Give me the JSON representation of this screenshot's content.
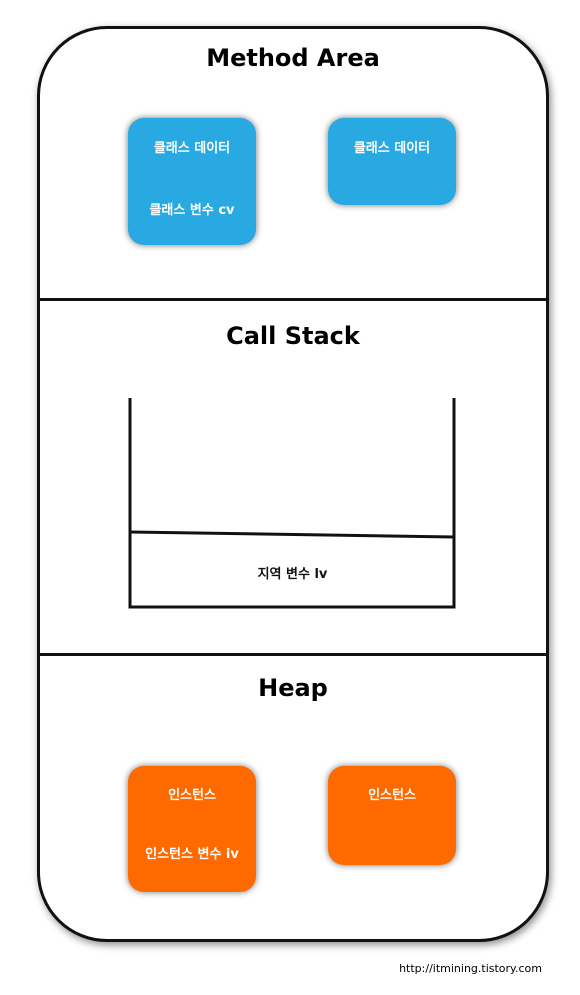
{
  "method_area": {
    "title": "Method Area",
    "box1": {
      "line1": "클래스 데이터",
      "line2": "클래스 변수 cv"
    },
    "box2": {
      "line1": "클래스 데이터"
    }
  },
  "call_stack": {
    "title": "Call Stack",
    "frame_label": "지역 변수 lv"
  },
  "heap": {
    "title": "Heap",
    "box1": {
      "line1": "인스턴스",
      "line2": "인스턴스 변수 iv"
    },
    "box2": {
      "line1": "인스턴스"
    }
  },
  "footer": {
    "url": "http://itmining.tistory.com"
  },
  "colors": {
    "class_box": "#29a9e1",
    "instance_box": "#ff6a00",
    "border": "#111111"
  }
}
